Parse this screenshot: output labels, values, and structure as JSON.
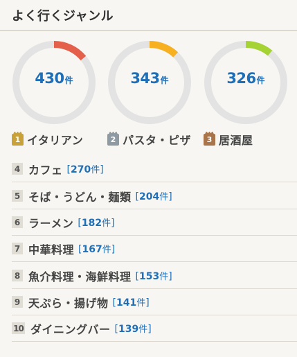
{
  "title": "よく行くジャンル",
  "colors": {
    "accent_blue": "#1f6fb8",
    "ring_bg": "#e3e3e3"
  },
  "top3": [
    {
      "rank": "1",
      "name": "イタリアン",
      "count": "430",
      "unit": "件",
      "ring_color": "#e4604a",
      "ring_fraction": 0.14,
      "medal": "gold"
    },
    {
      "rank": "2",
      "name": "パスタ・ピザ",
      "count": "343",
      "unit": "件",
      "ring_color": "#f6b020",
      "ring_fraction": 0.12,
      "medal": "silver"
    },
    {
      "rank": "3",
      "name": "居酒屋",
      "count": "326",
      "unit": "件",
      "ring_color": "#a5d334",
      "ring_fraction": 0.11,
      "medal": "bronze"
    }
  ],
  "list": [
    {
      "rank": "4",
      "name": "カフェ",
      "open": "[",
      "count": "270",
      "unit": "件",
      "close": "]"
    },
    {
      "rank": "5",
      "name": "そば・うどん・麺類",
      "open": "[",
      "count": "204",
      "unit": "件",
      "close": "]"
    },
    {
      "rank": "6",
      "name": "ラーメン",
      "open": "[",
      "count": "182",
      "unit": "件",
      "close": "]"
    },
    {
      "rank": "7",
      "name": "中華料理",
      "open": "[",
      "count": "167",
      "unit": "件",
      "close": "]"
    },
    {
      "rank": "8",
      "name": "魚介料理・海鮮料理",
      "open": "[",
      "count": "153",
      "unit": "件",
      "close": "]"
    },
    {
      "rank": "9",
      "name": "天ぷら・揚げ物",
      "open": "[",
      "count": "141",
      "unit": "件",
      "close": "]"
    },
    {
      "rank": "10",
      "name": "ダイニングバー",
      "open": "[",
      "count": "139",
      "unit": "件",
      "close": "]"
    }
  ]
}
